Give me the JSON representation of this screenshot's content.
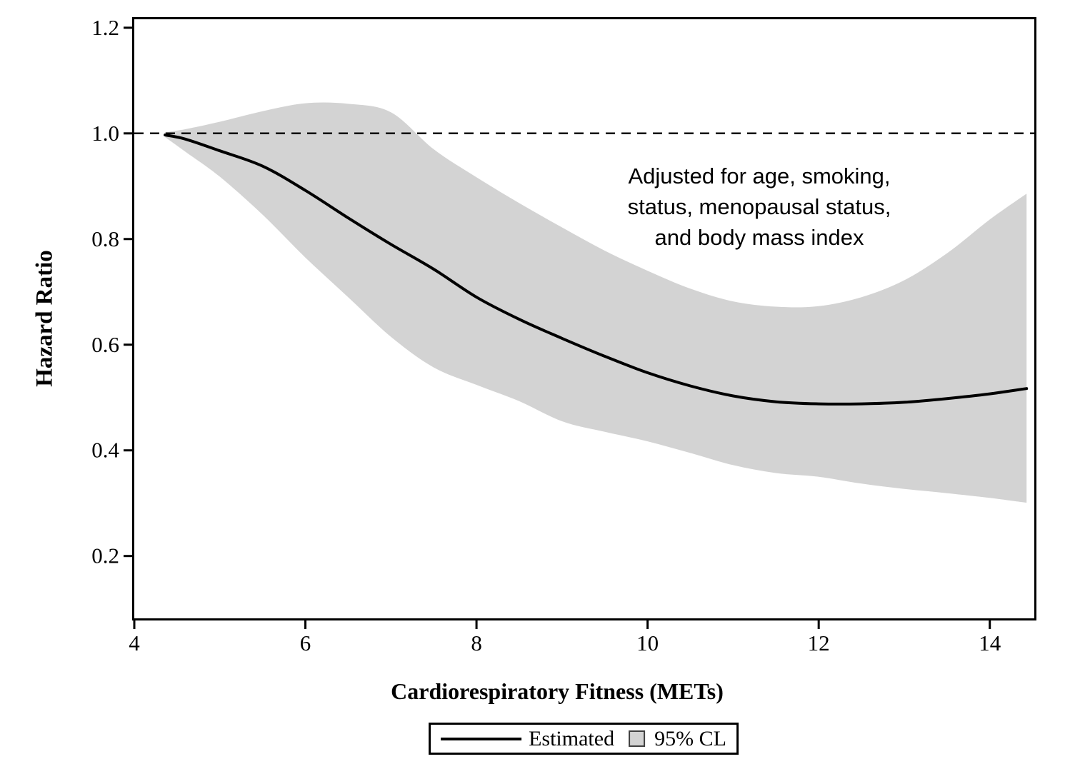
{
  "figure": {
    "background": "#ffffff"
  },
  "chart_data": {
    "type": "line",
    "title": "",
    "xlabel": "Cardiorespiratory Fitness (METs)",
    "ylabel": "Hazard Ratio",
    "xlim": [
      4,
      14.52
    ],
    "ylim": [
      0.082,
      1.216
    ],
    "grid": false,
    "x_ticks": {
      "values": [
        4,
        6,
        8,
        10,
        12,
        14
      ],
      "labels": [
        "4",
        "6",
        "8",
        "10",
        "12",
        "14"
      ]
    },
    "y_ticks": {
      "values": [
        0.2,
        0.4,
        0.6,
        0.8,
        1.0,
        1.2
      ],
      "labels": [
        "0.2",
        "0.4",
        "0.6",
        "0.8",
        "1.0",
        "1.2"
      ]
    },
    "reference_line": {
      "y": 1.0,
      "style": "dashed",
      "color": "#000000"
    },
    "x": [
      4.36,
      4.6,
      5.0,
      5.5,
      6.0,
      6.5,
      7.0,
      7.5,
      8.0,
      8.5,
      9.0,
      9.5,
      10.0,
      10.5,
      11.0,
      11.5,
      12.0,
      12.5,
      13.0,
      13.5,
      14.0,
      14.43
    ],
    "series": [
      {
        "name": "Estimated",
        "type": "line",
        "color": "#000000",
        "values": [
          0.997,
          0.989,
          0.967,
          0.938,
          0.892,
          0.84,
          0.79,
          0.743,
          0.69,
          0.648,
          0.612,
          0.578,
          0.547,
          0.522,
          0.503,
          0.492,
          0.488,
          0.488,
          0.491,
          0.498,
          0.507,
          0.517
        ]
      },
      {
        "name": "95% CL",
        "type": "band",
        "color": "#d3d3d3",
        "upper": [
          1.002,
          1.008,
          1.022,
          1.042,
          1.057,
          1.056,
          1.04,
          0.97,
          0.917,
          0.868,
          0.822,
          0.778,
          0.74,
          0.706,
          0.682,
          0.672,
          0.673,
          0.69,
          0.722,
          0.773,
          0.837,
          0.886
        ],
        "lower": [
          0.993,
          0.965,
          0.918,
          0.846,
          0.765,
          0.69,
          0.615,
          0.557,
          0.524,
          0.493,
          0.455,
          0.435,
          0.417,
          0.395,
          0.372,
          0.357,
          0.35,
          0.337,
          0.327,
          0.319,
          0.31,
          0.301
        ]
      }
    ],
    "annotation": {
      "lines": [
        "Adjusted for age, smoking,",
        "status, menopausal status,",
        "and body mass index"
      ]
    },
    "legend": {
      "position": "bottom",
      "entries": [
        {
          "label": "Estimated",
          "marker": "line",
          "color": "#000000"
        },
        {
          "label": "95% CL",
          "marker": "square",
          "fill": "#d3d3d3"
        }
      ]
    }
  }
}
